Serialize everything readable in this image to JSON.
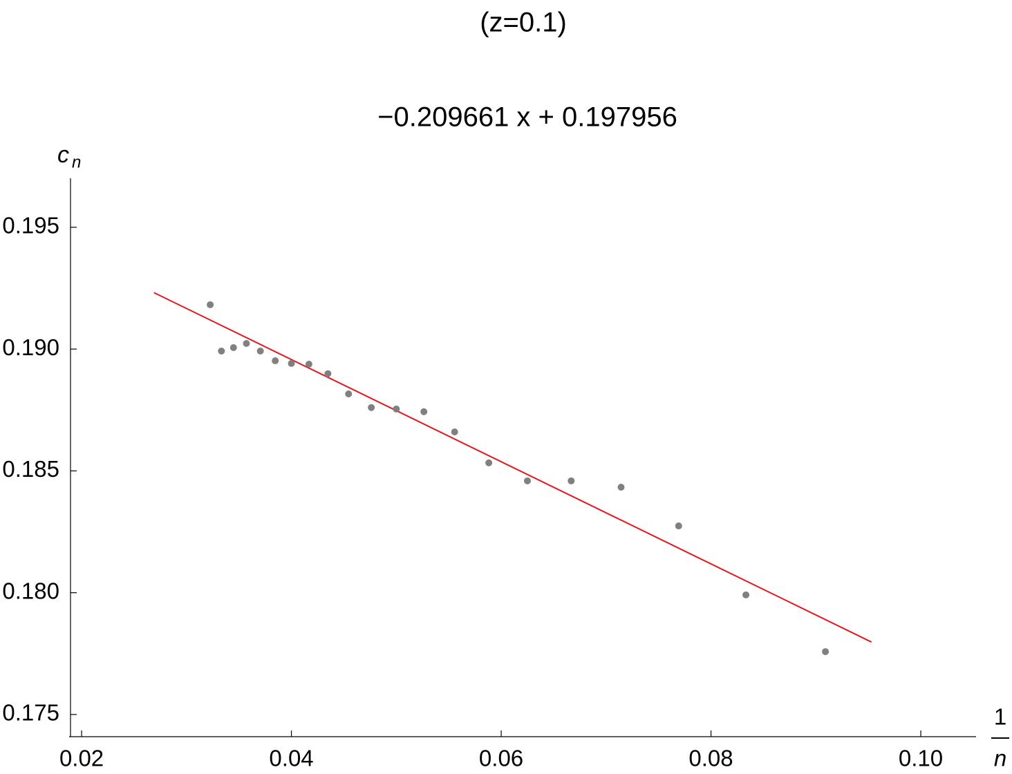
{
  "chart_data": {
    "type": "scatter",
    "title": "(z=0.1)",
    "subtitle": "−0.209661 x + 0.197956",
    "xlabel": {
      "numerator": "1",
      "denominator": "n"
    },
    "ylabel": {
      "base": "c",
      "sub": "n"
    },
    "x": [
      0.03226,
      0.03333,
      0.03448,
      0.03571,
      0.03704,
      0.03846,
      0.04,
      0.04167,
      0.04348,
      0.04545,
      0.04762,
      0.05,
      0.05263,
      0.05556,
      0.05882,
      0.0625,
      0.06667,
      0.07143,
      0.07692,
      0.08333,
      0.09091
    ],
    "values": [
      0.19182,
      0.18992,
      0.19006,
      0.19023,
      0.18992,
      0.18952,
      0.18941,
      0.18938,
      0.18899,
      0.18816,
      0.1876,
      0.18754,
      0.18743,
      0.1866,
      0.18533,
      0.18459,
      0.18459,
      0.18433,
      0.18274,
      0.17991,
      0.17758
    ],
    "color": "#808080",
    "fit": {
      "x": [
        0.0269,
        0.0953
      ],
      "values": [
        0.192316,
        0.177975
      ],
      "color": "#e8141a"
    },
    "xlim": [
      0.01881,
      0.10527
    ],
    "ylim": [
      0.17409,
      0.19701
    ],
    "xticks": [
      0.02,
      0.04,
      0.06,
      0.08,
      {
        "value": 0.1,
        "label": "0.10"
      }
    ],
    "yticks": [
      0.175,
      {
        "value": 0.18,
        "label": "0.180"
      },
      0.185,
      {
        "value": 0.19,
        "label": "0.190"
      },
      0.195
    ]
  }
}
